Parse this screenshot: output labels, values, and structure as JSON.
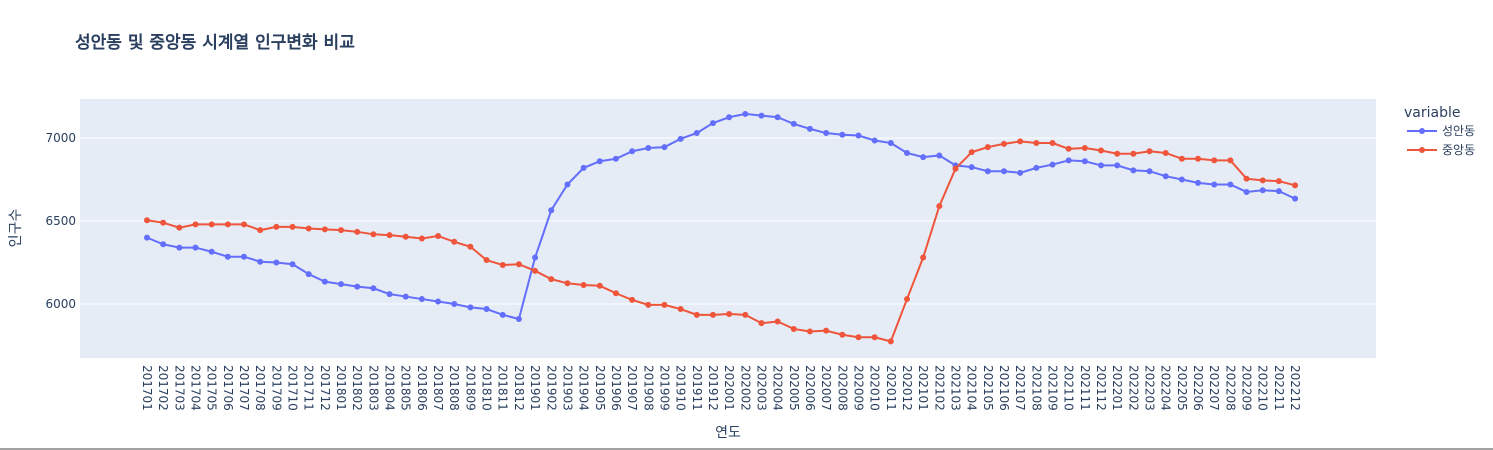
{
  "chart_data": {
    "type": "line",
    "title": "성안동 및 중앙동 시계열 인구변화 비교",
    "xlabel": "연도",
    "ylabel": "인구수",
    "ylim": [
      5675,
      7235
    ],
    "yticks": [
      6000,
      6500,
      7000
    ],
    "ytick_labels": [
      "6000",
      "6500",
      "7000"
    ],
    "grid": true,
    "legend_title": "variable",
    "legend_position": "top-right",
    "categories": [
      "201701",
      "201702",
      "201703",
      "201704",
      "201705",
      "201706",
      "201707",
      "201708",
      "201709",
      "201710",
      "201711",
      "201712",
      "201801",
      "201802",
      "201803",
      "201804",
      "201805",
      "201806",
      "201807",
      "201808",
      "201809",
      "201810",
      "201811",
      "201812",
      "201901",
      "201902",
      "201903",
      "201904",
      "201905",
      "201906",
      "201907",
      "201908",
      "201909",
      "201910",
      "201911",
      "201912",
      "202001",
      "202002",
      "202003",
      "202004",
      "202005",
      "202006",
      "202007",
      "202008",
      "202009",
      "202010",
      "202011",
      "202012",
      "202101",
      "202102",
      "202103",
      "202104",
      "202105",
      "202106",
      "202107",
      "202108",
      "202109",
      "202110",
      "202111",
      "202112",
      "202201",
      "202202",
      "202203",
      "202204",
      "202205",
      "202206",
      "202207",
      "202208",
      "202209",
      "202210",
      "202211",
      "202212"
    ],
    "series": [
      {
        "name": "성안동",
        "color": "#636efa",
        "values": [
          6400,
          6360,
          6340,
          6340,
          6315,
          6285,
          6285,
          6255,
          6250,
          6240,
          6180,
          6135,
          6120,
          6105,
          6095,
          6060,
          6045,
          6030,
          6015,
          6000,
          5980,
          5970,
          5935,
          5910,
          6280,
          6565,
          6720,
          6820,
          6860,
          6875,
          6920,
          6940,
          6945,
          6995,
          7030,
          7090,
          7125,
          7145,
          7135,
          7125,
          7085,
          7055,
          7030,
          7020,
          7015,
          6985,
          6970,
          6910,
          6885,
          6895,
          6835,
          6825,
          6800,
          6800,
          6790,
          6820,
          6840,
          6865,
          6860,
          6835,
          6835,
          6805,
          6800,
          6770,
          6750,
          6730,
          6720,
          6720,
          6675,
          6685,
          6680,
          6635
        ]
      },
      {
        "name": "중앙동",
        "color": "#ef553b",
        "values": [
          6505,
          6490,
          6460,
          6480,
          6480,
          6480,
          6480,
          6445,
          6465,
          6465,
          6455,
          6450,
          6445,
          6435,
          6420,
          6415,
          6405,
          6395,
          6410,
          6375,
          6345,
          6265,
          6235,
          6240,
          6200,
          6150,
          6125,
          6115,
          6110,
          6065,
          6025,
          5995,
          5995,
          5970,
          5935,
          5935,
          5940,
          5935,
          5885,
          5895,
          5850,
          5835,
          5840,
          5815,
          5800,
          5800,
          5775,
          6030,
          6280,
          6590,
          6815,
          6915,
          6945,
          6965,
          6980,
          6970,
          6970,
          6935,
          6940,
          6925,
          6905,
          6905,
          6920,
          6910,
          6875,
          6875,
          6865,
          6865,
          6755,
          6745,
          6740,
          6715
        ]
      }
    ]
  }
}
